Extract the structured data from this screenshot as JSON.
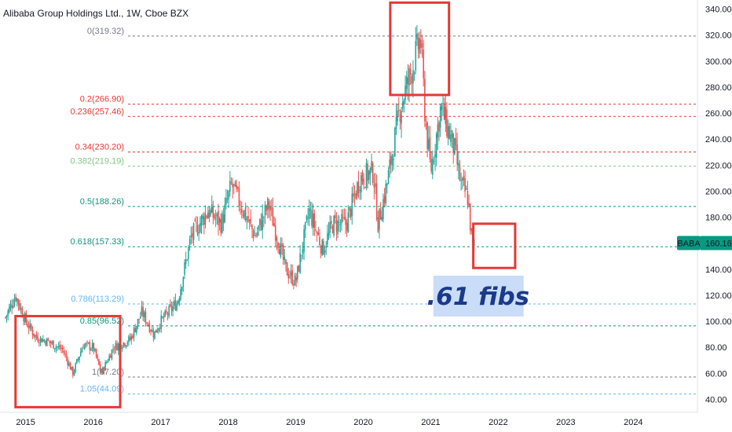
{
  "chart_data": {
    "type": "candlestick",
    "title": "Alibaba Group Holdings Ltd., 1W, Cboe BZX",
    "x_tick_labels": [
      "2015",
      "2016",
      "2017",
      "2018",
      "2019",
      "2020",
      "2021",
      "2022",
      "2023",
      "2024"
    ],
    "x_range": [
      2014.62,
      2024.95
    ],
    "y_tick_labels": [
      "40.00",
      "60.00",
      "80.00",
      "100.00",
      "120.00",
      "140.00",
      "160.00",
      "180.00",
      "200.00",
      "220.00",
      "240.00",
      "260.00",
      "280.00",
      "300.00",
      "320.00",
      "340.00"
    ],
    "y_range": [
      30,
      347
    ],
    "grid": false,
    "colors": {
      "up": "#26a69a",
      "down": "#ef5350"
    },
    "price_waypoints": [
      [
        2014.7,
        103
      ],
      [
        2014.85,
        120
      ],
      [
        2015.0,
        100
      ],
      [
        2015.15,
        88
      ],
      [
        2015.35,
        84
      ],
      [
        2015.55,
        78
      ],
      [
        2015.7,
        60
      ],
      [
        2015.85,
        82
      ],
      [
        2016.0,
        80
      ],
      [
        2016.12,
        60
      ],
      [
        2016.3,
        80
      ],
      [
        2016.55,
        86
      ],
      [
        2016.72,
        107
      ],
      [
        2016.9,
        90
      ],
      [
        2017.0,
        100
      ],
      [
        2017.25,
        115
      ],
      [
        2017.45,
        165
      ],
      [
        2017.7,
        185
      ],
      [
        2017.9,
        175
      ],
      [
        2018.05,
        205
      ],
      [
        2018.4,
        165
      ],
      [
        2018.6,
        190
      ],
      [
        2018.85,
        140
      ],
      [
        2019.0,
        130
      ],
      [
        2019.2,
        185
      ],
      [
        2019.4,
        155
      ],
      [
        2019.55,
        175
      ],
      [
        2019.75,
        175
      ],
      [
        2019.95,
        210
      ],
      [
        2020.15,
        215
      ],
      [
        2020.22,
        175
      ],
      [
        2020.35,
        205
      ],
      [
        2020.55,
        265
      ],
      [
        2020.7,
        290
      ],
      [
        2020.85,
        318
      ],
      [
        2020.92,
        255
      ],
      [
        2021.0,
        215
      ],
      [
        2021.15,
        265
      ],
      [
        2021.35,
        232
      ],
      [
        2021.45,
        205
      ],
      [
        2021.55,
        195
      ],
      [
        2021.62,
        155
      ],
      [
        2021.65,
        160
      ]
    ],
    "fib_levels": [
      {
        "ratio": "0",
        "price": 319.32,
        "label": "0(319.32)",
        "color": "#787b86"
      },
      {
        "ratio": "0.2",
        "price": 266.9,
        "label": "0.2(266.90)",
        "color": "#e53935"
      },
      {
        "ratio": "0.236",
        "price": 257.46,
        "label": "0.236(257.46)",
        "color": "#e53935"
      },
      {
        "ratio": "0.34",
        "price": 230.2,
        "label": "0.34(230.20)",
        "color": "#e53935"
      },
      {
        "ratio": "0.382",
        "price": 219.19,
        "label": "0.382(219.19)",
        "color": "#81c784"
      },
      {
        "ratio": "0.5",
        "price": 188.26,
        "label": "0.5(188.26)",
        "color": "#089981"
      },
      {
        "ratio": "0.618",
        "price": 157.33,
        "label": "0.618(157.33)",
        "color": "#089981"
      },
      {
        "ratio": "0.786",
        "price": 113.29,
        "label": "0.786(113.29)",
        "color": "#64b5f6"
      },
      {
        "ratio": "0.85",
        "price": 96.52,
        "label": "0.85(96.52)",
        "color": "#089981"
      },
      {
        "ratio": "1",
        "price": 57.2,
        "label": "1(57.20)",
        "color": "#787b86"
      },
      {
        "ratio": "1.05",
        "price": 44.09,
        "label": "1.05(44.09)",
        "color": "#64b5f6"
      }
    ],
    "boxes": [
      {
        "name": "low-box",
        "x0": 2014.85,
        "x1": 2016.4,
        "y0": 34,
        "y1": 104
      },
      {
        "name": "peak-box",
        "x0": 2020.4,
        "x1": 2021.27,
        "y0": 274,
        "y1": 345
      },
      {
        "name": "target-box",
        "x0": 2021.63,
        "x1": 2022.25,
        "y0": 141,
        "y1": 175
      }
    ],
    "annotation": {
      "text": ".61 fibs",
      "x": 2021.62,
      "y": 120,
      "background": "#c9dcf8"
    },
    "last_price": {
      "symbol": "BABA",
      "value": "160.16",
      "price": 160.16,
      "color": "#089981"
    }
  }
}
